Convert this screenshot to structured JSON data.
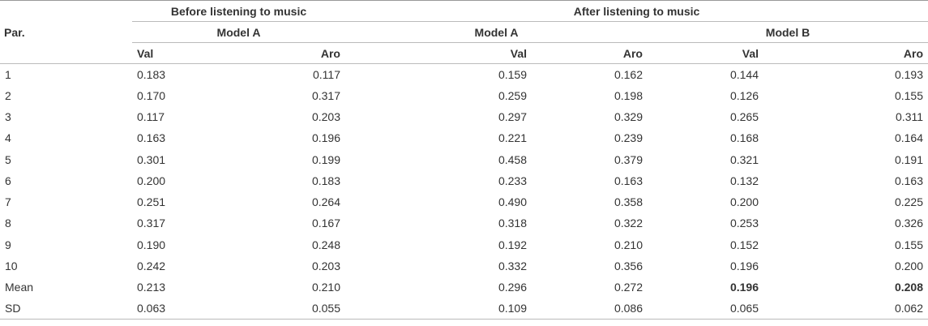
{
  "table": {
    "header": {
      "par": "Par.",
      "groups": [
        "Before listening to music",
        "After listening to music"
      ],
      "models": [
        "Model A",
        "Model A",
        "Model B"
      ],
      "subs": [
        "Val",
        "Aro",
        "Val",
        "Aro",
        "Val",
        "Aro"
      ]
    },
    "rows": [
      [
        "1",
        "0.183",
        "0.117",
        "0.159",
        "0.162",
        "0.144",
        "0.193"
      ],
      [
        "2",
        "0.170",
        "0.317",
        "0.259",
        "0.198",
        "0.126",
        "0.155"
      ],
      [
        "3",
        "0.117",
        "0.203",
        "0.297",
        "0.329",
        "0.265",
        "0.311"
      ],
      [
        "4",
        "0.163",
        "0.196",
        "0.221",
        "0.239",
        "0.168",
        "0.164"
      ],
      [
        "5",
        "0.301",
        "0.199",
        "0.458",
        "0.379",
        "0.321",
        "0.191"
      ],
      [
        "6",
        "0.200",
        "0.183",
        "0.233",
        "0.163",
        "0.132",
        "0.163"
      ],
      [
        "7",
        "0.251",
        "0.264",
        "0.490",
        "0.358",
        "0.200",
        "0.225"
      ],
      [
        "8",
        "0.317",
        "0.167",
        "0.318",
        "0.322",
        "0.253",
        "0.326"
      ],
      [
        "9",
        "0.190",
        "0.248",
        "0.192",
        "0.210",
        "0.152",
        "0.155"
      ],
      [
        "10",
        "0.242",
        "0.203",
        "0.332",
        "0.356",
        "0.196",
        "0.200"
      ],
      [
        "Mean",
        "0.213",
        "0.210",
        "0.296",
        "0.272",
        "0.196",
        "0.208"
      ],
      [
        "SD",
        "0.063",
        "0.055",
        "0.109",
        "0.086",
        "0.065",
        "0.062"
      ]
    ]
  }
}
